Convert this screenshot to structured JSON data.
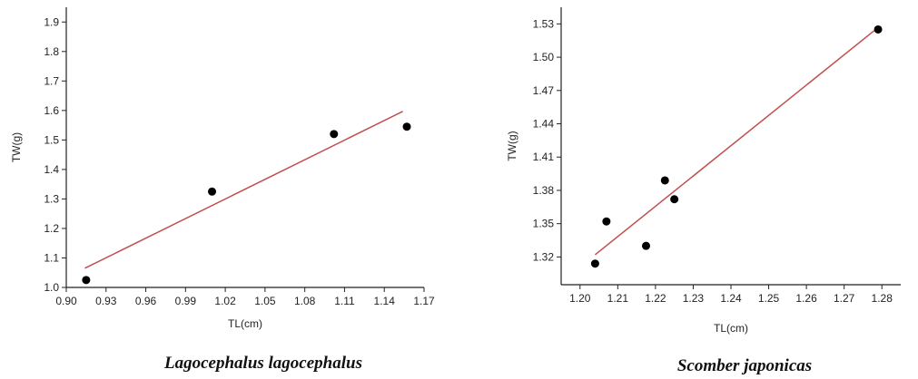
{
  "chart_data": [
    {
      "type": "scatter",
      "title": "",
      "caption": "Lagocephalus lagocephalus",
      "xlabel": "TL(cm)",
      "ylabel": "TW(g)",
      "xlim": [
        0.9,
        1.17
      ],
      "ylim": [
        1.0,
        1.95
      ],
      "x_ticks": [
        "0.90",
        "0.93",
        "0.96",
        "0.99",
        "1.02",
        "1.05",
        "1.08",
        "1.11",
        "1.14",
        "1.17"
      ],
      "y_ticks": [
        "1.0",
        "1.1",
        "1.2",
        "1.3",
        "1.4",
        "1.5",
        "1.6",
        "1.7",
        "1.8",
        "1.9"
      ],
      "grid": false,
      "points": [
        {
          "x": 0.915,
          "y": 1.025
        },
        {
          "x": 1.01,
          "y": 1.325
        },
        {
          "x": 1.102,
          "y": 1.52
        },
        {
          "x": 1.157,
          "y": 1.545
        }
      ],
      "fit_line": {
        "x": [
          0.914,
          1.154
        ],
        "y": [
          1.065,
          1.597
        ]
      },
      "colors": {
        "points": "#000000",
        "fit_line": "#c0504d",
        "axes": "#222222"
      }
    },
    {
      "type": "scatter",
      "title": "",
      "caption": "Scomber japonicas",
      "xlabel": "TL(cm)",
      "ylabel": "TW(g)",
      "xlim": [
        1.195,
        1.285
      ],
      "ylim": [
        1.295,
        1.545
      ],
      "x_ticks": [
        "1.20",
        "1.21",
        "1.22",
        "1.23",
        "1.24",
        "1.25",
        "1.26",
        "1.27",
        "1.28"
      ],
      "y_ticks": [
        "1.32",
        "1.35",
        "1.38",
        "1.41",
        "1.44",
        "1.47",
        "1.50",
        "1.53"
      ],
      "grid": false,
      "points": [
        {
          "x": 1.204,
          "y": 1.314
        },
        {
          "x": 1.207,
          "y": 1.352
        },
        {
          "x": 1.2175,
          "y": 1.33
        },
        {
          "x": 1.2225,
          "y": 1.389
        },
        {
          "x": 1.225,
          "y": 1.372
        },
        {
          "x": 1.279,
          "y": 1.525
        }
      ],
      "fit_line": {
        "x": [
          1.204,
          1.278
        ],
        "y": [
          1.322,
          1.524
        ]
      },
      "colors": {
        "points": "#000000",
        "fit_line": "#c0504d",
        "axes": "#222222"
      }
    }
  ]
}
